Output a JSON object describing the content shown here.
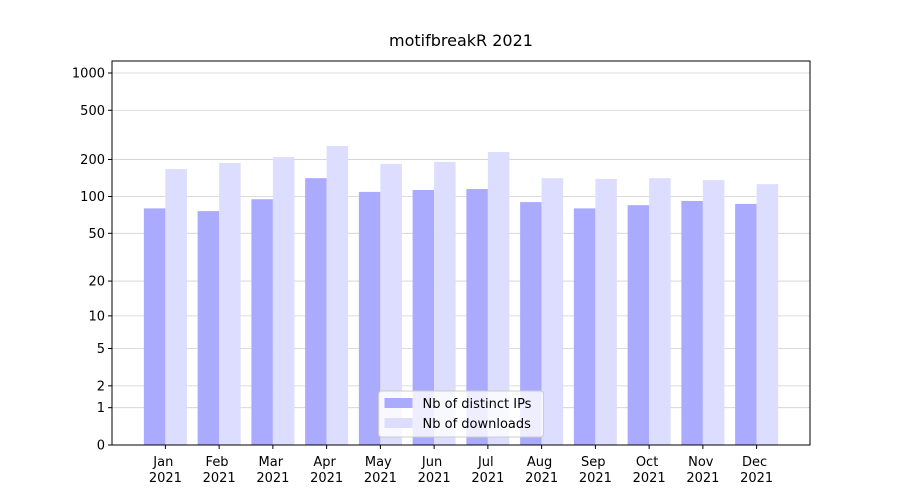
{
  "chart_data": {
    "type": "bar",
    "title": "motifbreakR 2021",
    "categories": [
      "Jan 2021",
      "Feb 2021",
      "Mar 2021",
      "Apr 2021",
      "May 2021",
      "Jun 2021",
      "Jul 2021",
      "Aug 2021",
      "Sep 2021",
      "Oct 2021",
      "Nov 2021",
      "Dec 2021"
    ],
    "series": [
      {
        "name": "Nb of distinct IPs",
        "color": "#aaaaff",
        "values": [
          80,
          76,
          95,
          141,
          109,
          113,
          115,
          90,
          80,
          85,
          92,
          87
        ]
      },
      {
        "name": "Nb of downloads",
        "color": "#ddddff",
        "values": [
          167,
          187,
          209,
          257,
          184,
          191,
          230,
          141,
          139,
          141,
          136,
          126
        ]
      }
    ],
    "yscale": "log1p",
    "ylim": [
      0,
      1250
    ],
    "yticks": [
      0,
      1,
      2,
      5,
      10,
      20,
      50,
      100,
      200,
      500,
      1000
    ],
    "grid": true,
    "legend": "lower center"
  }
}
